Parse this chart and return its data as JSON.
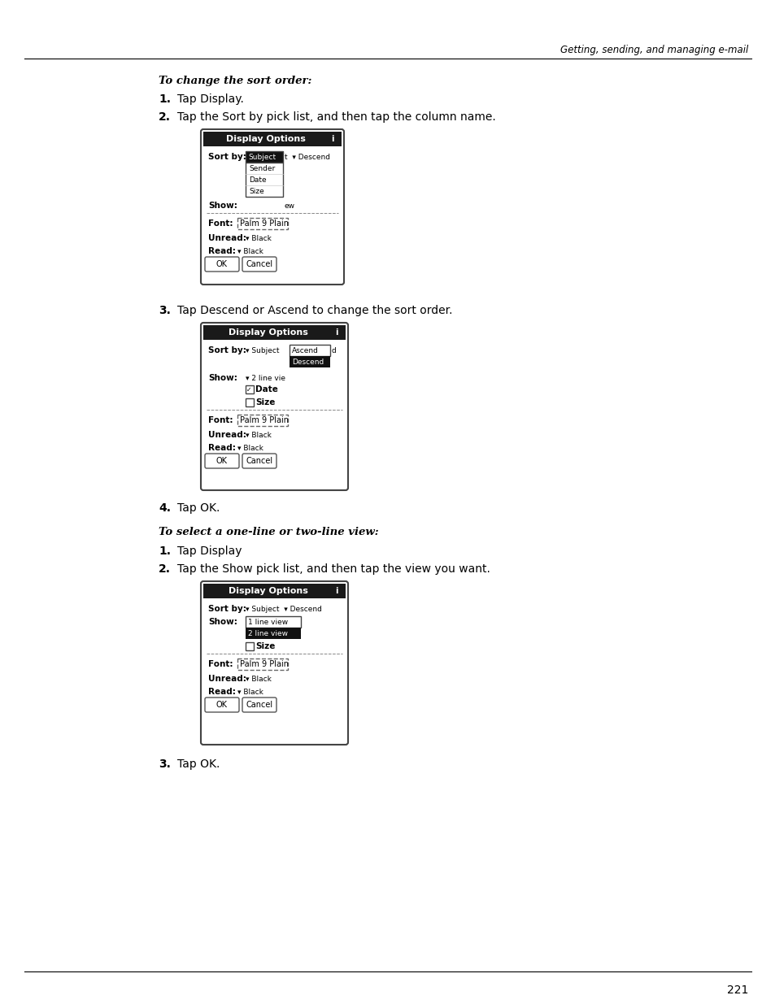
{
  "page_title": "Getting, sending, and managing e-mail",
  "page_number": "221",
  "background_color": "#ffffff",
  "section1_header": "To change the sort order:",
  "section1_steps": [
    "Tap Display.",
    "Tap the Sort by pick list, and then tap the column name.",
    "Tap Descend or Ascend to change the sort order.",
    "Tap OK."
  ],
  "section2_header": "To select a one-line or two-line view:",
  "section2_steps": [
    "Tap Display",
    "Tap the Show pick list, and then tap the view you want.",
    "Tap OK."
  ]
}
